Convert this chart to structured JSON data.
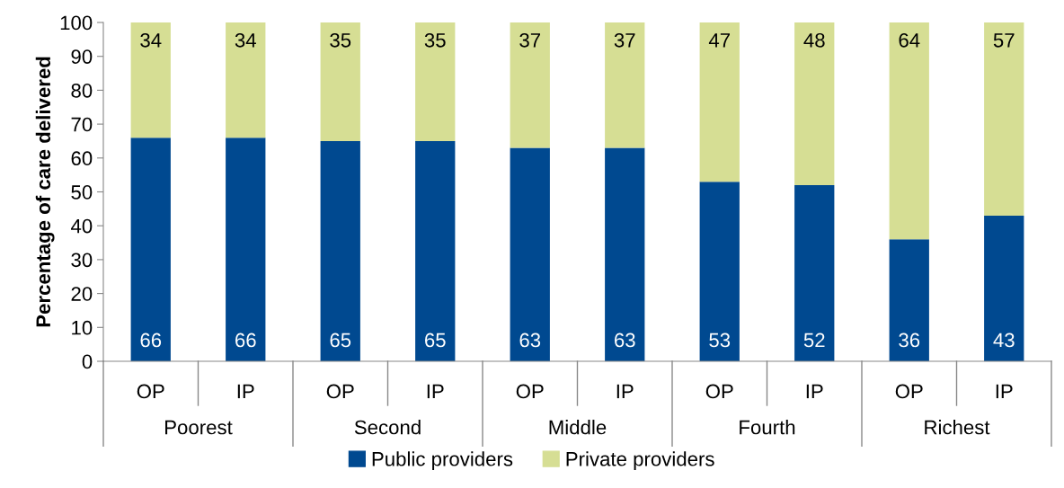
{
  "chart_data": {
    "type": "bar",
    "stacked": true,
    "ylabel": "Percentage of care delivered",
    "categories": [
      "OP",
      "IP",
      "OP",
      "IP",
      "OP",
      "IP",
      "OP",
      "IP",
      "OP",
      "IP"
    ],
    "annotations": [
      "Poorest",
      "Second",
      "Middle",
      "Fourth",
      "Richest"
    ],
    "series": [
      {
        "name": "Public providers",
        "color": "#004990",
        "values": [
          66,
          66,
          65,
          65,
          63,
          63,
          53,
          52,
          36,
          43
        ]
      },
      {
        "name": "Private providers",
        "color": "#d6de94",
        "values": [
          34,
          34,
          35,
          35,
          37,
          37,
          47,
          48,
          64,
          57
        ]
      }
    ],
    "ylim": [
      0,
      100
    ],
    "yticks": [
      0,
      10,
      20,
      30,
      40,
      50,
      60,
      70,
      80,
      90,
      100
    ],
    "data_labels": true,
    "grid": false,
    "legend": "bottom"
  }
}
